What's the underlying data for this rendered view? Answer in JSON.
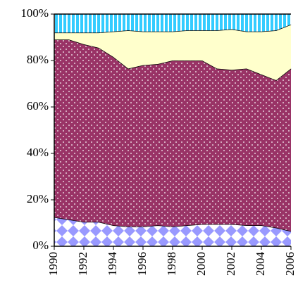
{
  "chart_data": {
    "type": "stacked_area_100",
    "x": [
      1990,
      1991,
      1992,
      1993,
      1994,
      1995,
      1996,
      1997,
      1998,
      1999,
      2000,
      2001,
      2002,
      2003,
      2004,
      2005,
      2006
    ],
    "series": [
      {
        "color": "#9999ff",
        "pattern": "diamonds",
        "values": [
          12.5,
          11.5,
          10.5,
          10.5,
          9,
          8.5,
          8.5,
          9,
          8.5,
          9,
          9.5,
          9.5,
          9.5,
          9,
          9,
          8,
          6.5
        ]
      },
      {
        "color": "#993366",
        "pattern": "dots",
        "values": [
          76.5,
          77.5,
          76.5,
          75,
          72.5,
          68,
          69.5,
          69.5,
          71.5,
          71,
          70.5,
          67,
          66.5,
          67.5,
          65,
          63.5,
          70
        ]
      },
      {
        "color": "#ffffcc",
        "pattern": "solid",
        "values": [
          3,
          3,
          5,
          6.5,
          11,
          16.5,
          14.5,
          14,
          12.5,
          13,
          13,
          16.5,
          17.5,
          16,
          18.5,
          21.5,
          19
        ]
      },
      {
        "color": "#33ccff",
        "pattern": "stripes",
        "values": [
          8,
          8,
          8,
          8,
          7.5,
          7,
          7.5,
          7.5,
          7.5,
          7,
          7,
          7,
          6.5,
          7.5,
          7.5,
          7,
          4.5
        ]
      }
    ],
    "xlim": [
      1990,
      2006
    ],
    "xticks": [
      1990,
      1992,
      1994,
      1996,
      1998,
      2000,
      2002,
      2004,
      2006
    ],
    "ylim": [
      0,
      100
    ],
    "yticks": [
      {
        "value": 0,
        "label": "0%"
      },
      {
        "value": 20,
        "label": "20%"
      },
      {
        "value": 40,
        "label": "40%"
      },
      {
        "value": 60,
        "label": "60%"
      },
      {
        "value": 80,
        "label": "80%"
      },
      {
        "value": 100,
        "label": "100%"
      }
    ]
  }
}
